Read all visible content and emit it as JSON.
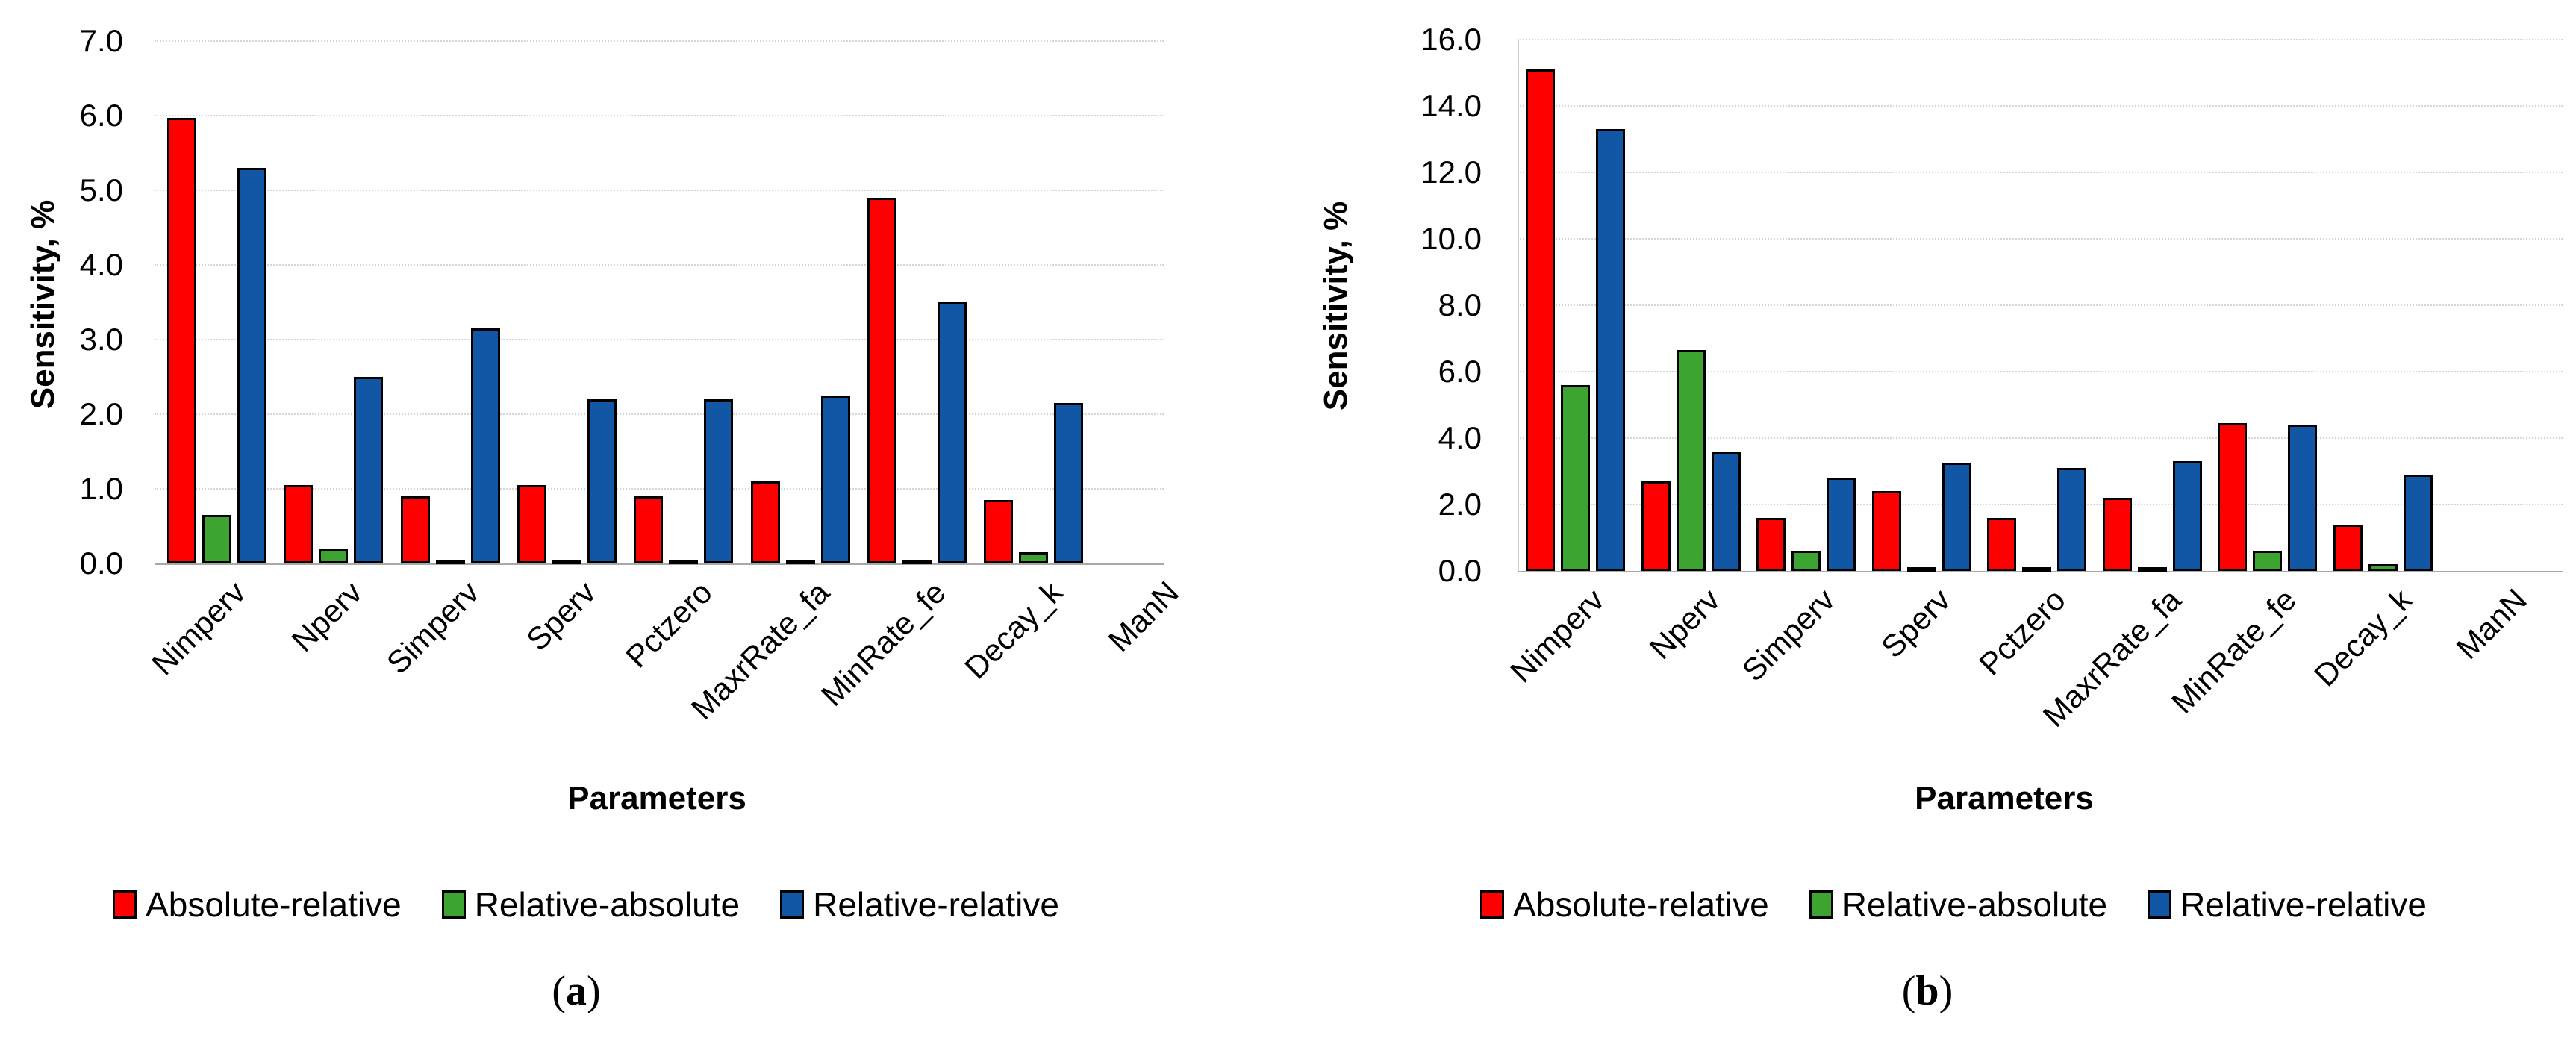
{
  "figure": {
    "background": "#FFFFFF",
    "grid_color": "#D6D6D6",
    "axis_line_color": "#A8A8A8",
    "bar_border_color": "#000000",
    "panels": [
      {
        "caption": {
          "open": "(",
          "letter": "a",
          "close": ")"
        }
      },
      {
        "caption": {
          "open": "(",
          "letter": "b",
          "close": ")"
        }
      }
    ]
  },
  "legend": {
    "items": [
      {
        "label": "Absolute-relative",
        "color": "#FE0000"
      },
      {
        "label": "Relative-absolute",
        "color": "#3EA431"
      },
      {
        "label": "Relative-relative",
        "color": "#1257A5"
      }
    ]
  },
  "chart_data": [
    {
      "type": "bar",
      "panel": "a",
      "title": "",
      "xlabel": "Parameters",
      "ylabel": "Sensitivity, %",
      "ylim": [
        0,
        7
      ],
      "ytick_step": 1,
      "ytick_labels": [
        "0.0",
        "1.0",
        "2.0",
        "3.0",
        "4.0",
        "5.0",
        "6.0",
        "7.0"
      ],
      "grid": "horizontal-dotted",
      "legend_position": "bottom",
      "categories": [
        "Nimperv",
        "Nperv",
        "Simperv",
        "Sperv",
        "Pctzero",
        "MaxrRate_fa",
        "MinRate_fe",
        "Decay_k",
        "ManN"
      ],
      "series": [
        {
          "name": "Absolute-relative",
          "color": "#FE0000",
          "values": [
            5.97,
            1.05,
            0.9,
            1.05,
            0.9,
            1.1,
            4.9,
            0.85,
            0
          ]
        },
        {
          "name": "Relative-absolute",
          "color": "#3EA431",
          "values": [
            0.65,
            0.2,
            0.03,
            0.03,
            0.03,
            0.03,
            0.03,
            0.15,
            0
          ]
        },
        {
          "name": "Relative-relative",
          "color": "#1257A5",
          "values": [
            5.3,
            2.5,
            3.15,
            2.2,
            2.2,
            2.25,
            3.5,
            2.15,
            0
          ]
        }
      ]
    },
    {
      "type": "bar",
      "panel": "b",
      "title": "",
      "xlabel": "Parameters",
      "ylabel": "Sensitivity, %",
      "ylim": [
        0,
        16
      ],
      "ytick_step": 2,
      "ytick_labels": [
        "0.0",
        "2.0",
        "4.0",
        "6.0",
        "8.0",
        "10.0",
        "12.0",
        "14.0",
        "16.0"
      ],
      "grid": "horizontal-dotted",
      "legend_position": "bottom",
      "categories": [
        "Nimperv",
        "Nperv",
        "Simperv",
        "Sperv",
        "Pctzero",
        "MaxrRate_fa",
        "MinRate_fe",
        "Decay_k",
        "ManN"
      ],
      "series": [
        {
          "name": "Absolute-relative",
          "color": "#FE0000",
          "values": [
            15.1,
            2.7,
            1.6,
            2.4,
            1.6,
            2.2,
            4.45,
            1.4,
            0
          ]
        },
        {
          "name": "Relative-absolute",
          "color": "#3EA431",
          "values": [
            5.6,
            6.65,
            0.6,
            0.1,
            0.1,
            0.05,
            0.6,
            0.2,
            0
          ]
        },
        {
          "name": "Relative-relative",
          "color": "#1257A5",
          "values": [
            13.3,
            3.6,
            2.8,
            3.25,
            3.1,
            3.3,
            4.4,
            2.9,
            0
          ]
        }
      ]
    }
  ]
}
